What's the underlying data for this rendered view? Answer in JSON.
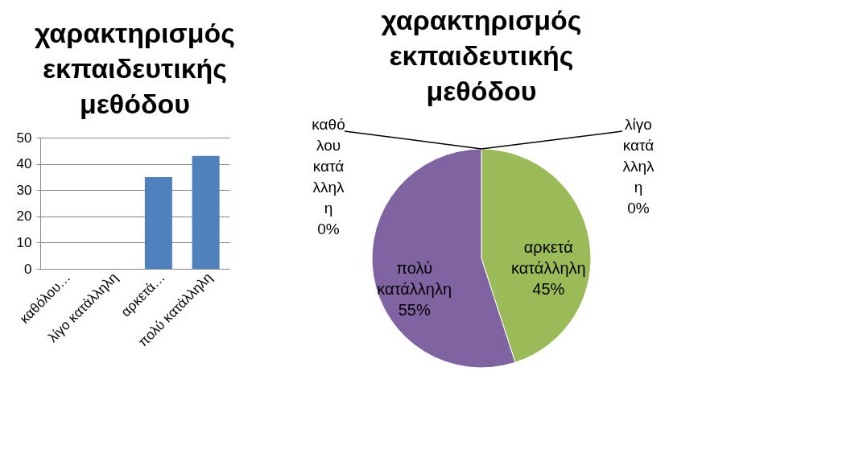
{
  "chart_data": [
    {
      "type": "bar",
      "title": "χαρακτηρισμός εκπαιδευτικής μεθόδου",
      "categories": [
        "καθόλου…",
        "λίγο κατάλληλη",
        "αρκετά…",
        "πολύ κατάλληλη"
      ],
      "values": [
        0,
        0,
        35,
        43
      ],
      "color": "#4f81bd",
      "ylim": [
        0,
        50
      ],
      "yticks": [
        0,
        10,
        20,
        30,
        40,
        50
      ],
      "grid": "y"
    },
    {
      "type": "pie",
      "title": "χαρακτηρισμός εκπαιδευτικής μεθόδου",
      "categories": [
        "καθόλου κατάλληλη",
        "λίγο κατάλληλη",
        "αρκετά κατάλληλη",
        "πολύ κατάλληλη"
      ],
      "values": [
        0,
        0,
        45,
        55
      ],
      "colors": [
        "#4f81bd",
        "#c0504d",
        "#9bbb59",
        "#8064a2"
      ],
      "value_labels": [
        "0%",
        "0%",
        "45%",
        "55%"
      ],
      "legend": false
    }
  ]
}
